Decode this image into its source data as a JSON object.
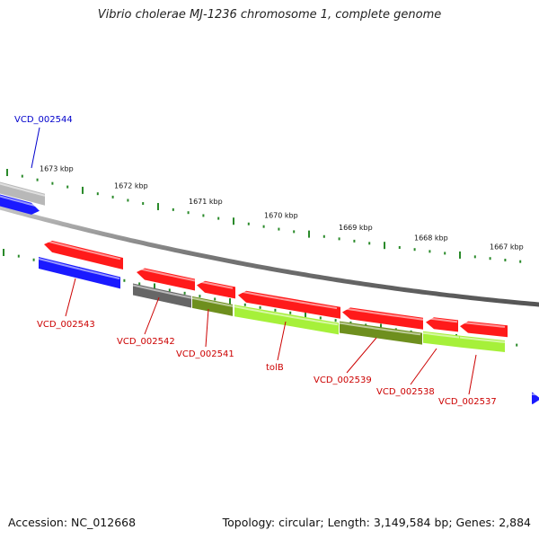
{
  "title": "Vibrio cholerae MJ-1236 chromosome 1, complete genome",
  "footer": {
    "accession": "Accession: NC_012668",
    "summary": "Topology: circular; Length: 3,149,584 bp; Genes: 2,884"
  },
  "colors": {
    "red": "#ff1a1a",
    "blue": "#1a1aff",
    "grey": "#666666",
    "light_grey": "#b8b8b8",
    "olive": "#6e8f1e",
    "lime": "#a6f03a",
    "ticks": "#2a8a2a",
    "label_red": "#cc0000",
    "label_blue": "#0000cc"
  },
  "ticks": [
    "1673 kbp",
    "1672 kbp",
    "1671 kbp",
    "1670 kbp",
    "1669 kbp",
    "1668 kbp",
    "1667 kbp"
  ],
  "genes": [
    {
      "name": "VCD_002544",
      "strand": "forward",
      "color": "blue"
    },
    {
      "name": "VCD_002543",
      "strand": "reverse",
      "color": "red"
    },
    {
      "name": "VCD_002542",
      "strand": "reverse",
      "color": "red"
    },
    {
      "name": "VCD_002541",
      "strand": "reverse",
      "color": "red"
    },
    {
      "name": "tolB",
      "strand": "reverse",
      "color": "red"
    },
    {
      "name": "VCD_002539",
      "strand": "reverse",
      "color": "red"
    },
    {
      "name": "VCD_002538",
      "strand": "reverse",
      "color": "red"
    },
    {
      "name": "VCD_002537",
      "strand": "reverse",
      "color": "red"
    }
  ]
}
